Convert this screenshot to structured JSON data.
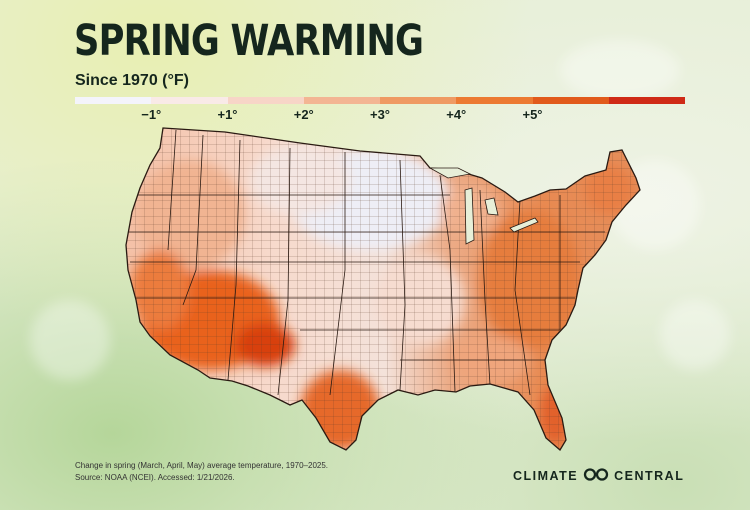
{
  "title": "SPRING WARMING",
  "subtitle": "Since 1970 (°F)",
  "legend": {
    "ticks": [
      "−1°",
      "+1°",
      "+2°",
      "+3°",
      "+4°",
      "+5°"
    ],
    "colors": [
      "#f4f4fb",
      "#f9eae7",
      "#f7d5c7",
      "#f3b593",
      "#ef9a63",
      "#ec7a32",
      "#e15a1b",
      "#cf2a16"
    ]
  },
  "map": {
    "description_colors": {
      "north_central": "#eeeef6",
      "northwest": "#f6d2c2",
      "southwest": "#e9621c",
      "southwest_core": "#d8400f",
      "texas_gulf": "#e77535",
      "east": "#e88a52",
      "southeast": "#ee9d70",
      "florida": "#e6702d",
      "plains": "#f6dcd0",
      "great_lakes": "#f0b18e"
    }
  },
  "footnote": {
    "line1": "Change in spring (March, April, May) average temperature, 1970–2025.",
    "line2": "Source: NOAA (NCEI). Accessed: 1/21/2026."
  },
  "brand": {
    "left": "CLIMATE",
    "right": "CENTRAL"
  }
}
